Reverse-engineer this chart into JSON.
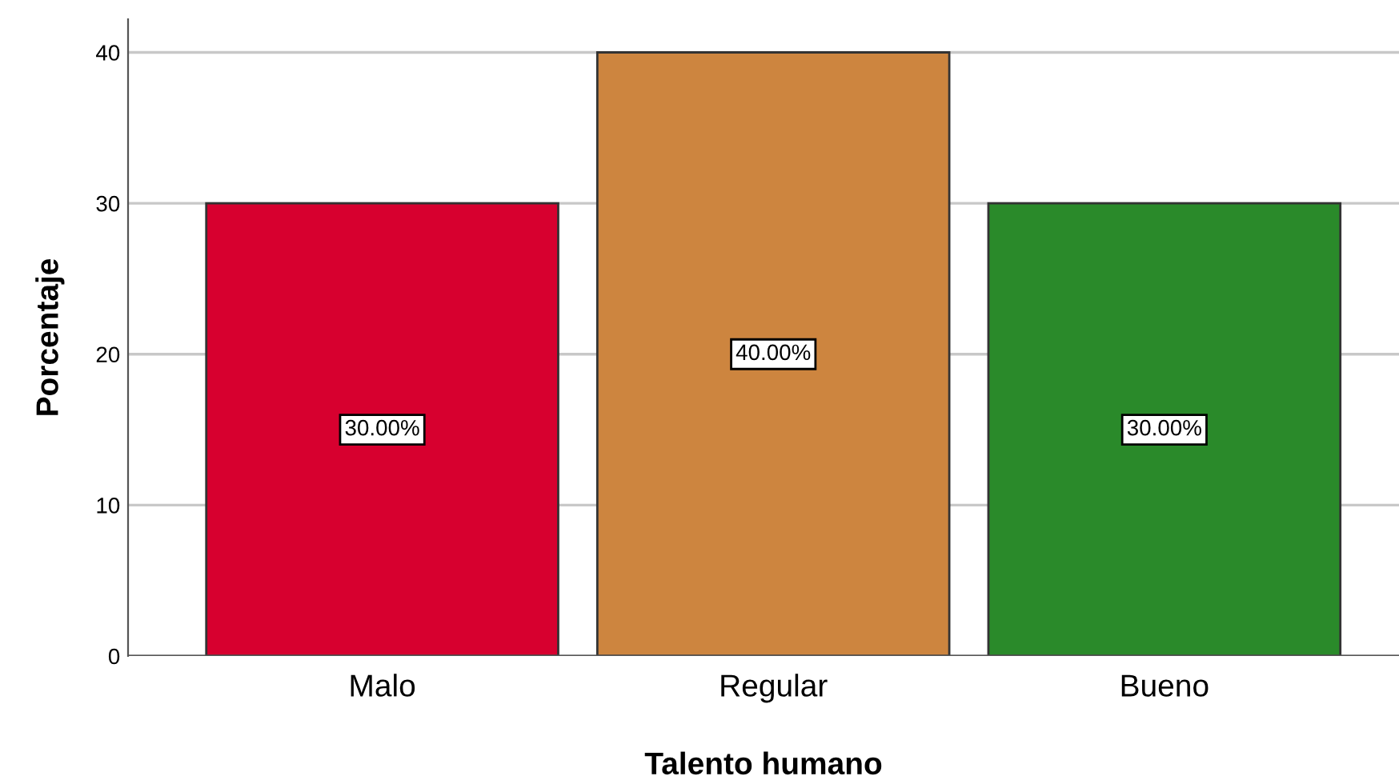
{
  "chart_data": {
    "type": "bar",
    "xlabel": "Talento humano",
    "ylabel": "Porcentaje",
    "categories": [
      "Malo",
      "Regular",
      "Bueno"
    ],
    "values": [
      30,
      40,
      30
    ],
    "colors": [
      "#d7002f",
      "#cd853f",
      "#2a8a2a"
    ],
    "value_labels": [
      "30.00%",
      "40.00%",
      "30.00%"
    ],
    "ylim": [
      0,
      42.2
    ],
    "yticks": [
      0,
      10,
      20,
      30,
      40
    ],
    "grid": "y"
  }
}
